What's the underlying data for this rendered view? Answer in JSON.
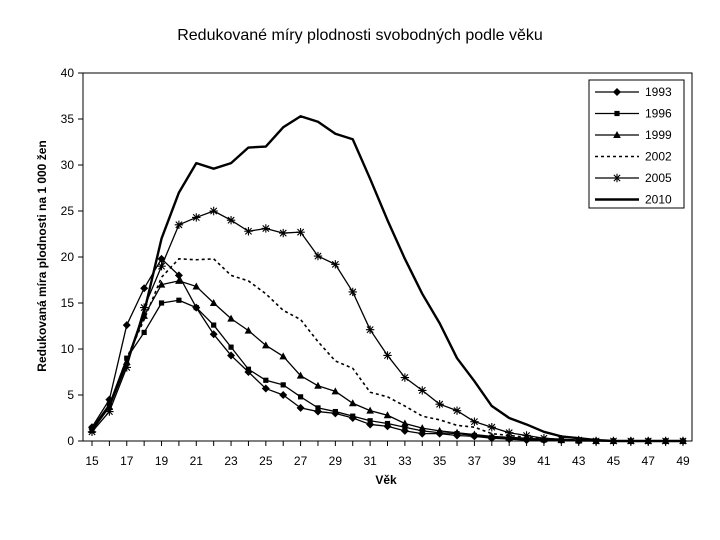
{
  "chart_data": {
    "type": "line",
    "title": "Redukované míry plodnosti svobodných podle věku",
    "xlabel": "Věk",
    "ylabel": "Redukovaná míra plodnosti na 1 000 žen",
    "xlim": [
      15,
      49
    ],
    "ylim": [
      0,
      40
    ],
    "x_ticks": [
      15,
      17,
      19,
      21,
      23,
      25,
      27,
      29,
      31,
      33,
      35,
      37,
      39,
      41,
      43,
      45,
      47,
      49
    ],
    "y_ticks": [
      0,
      5,
      10,
      15,
      20,
      25,
      30,
      35,
      40
    ],
    "grid": false,
    "legend_position": "top-right",
    "x": [
      15,
      16,
      17,
      18,
      19,
      20,
      21,
      22,
      23,
      24,
      25,
      26,
      27,
      28,
      29,
      30,
      31,
      32,
      33,
      34,
      35,
      36,
      37,
      38,
      39,
      40,
      41,
      42,
      43,
      44,
      45,
      46,
      47,
      48,
      49
    ],
    "series": [
      {
        "name": "1993",
        "marker": "diamond",
        "dash": "solid",
        "width": 1.3,
        "values": [
          1.5,
          4.5,
          12.6,
          16.6,
          19.8,
          18.0,
          14.5,
          11.6,
          9.3,
          7.5,
          5.7,
          5.0,
          3.6,
          3.2,
          3.0,
          2.5,
          1.8,
          1.6,
          1.1,
          0.8,
          0.8,
          0.6,
          0.5,
          0.3,
          0.2,
          0.1,
          0.1,
          0.1,
          0.0,
          0.0,
          0.0,
          0.0,
          0.0,
          0.0,
          0.0
        ]
      },
      {
        "name": "1996",
        "marker": "square",
        "dash": "solid",
        "width": 1.3,
        "values": [
          1.4,
          4.0,
          9.0,
          11.8,
          15.0,
          15.3,
          14.5,
          12.6,
          10.2,
          7.8,
          6.6,
          6.1,
          4.8,
          3.6,
          3.2,
          2.7,
          2.2,
          1.9,
          1.5,
          1.1,
          0.9,
          0.8,
          0.6,
          0.4,
          0.3,
          0.2,
          0.1,
          0.1,
          0.0,
          0.0,
          0.0,
          0.0,
          0.0,
          0.0,
          0.0
        ]
      },
      {
        "name": "1999",
        "marker": "triangle",
        "dash": "solid",
        "width": 1.3,
        "values": [
          1.2,
          3.7,
          8.6,
          13.6,
          17.0,
          17.4,
          16.8,
          15.0,
          13.3,
          12.0,
          10.4,
          9.2,
          7.1,
          6.0,
          5.4,
          4.1,
          3.3,
          2.8,
          1.9,
          1.4,
          1.1,
          0.9,
          0.7,
          0.5,
          0.4,
          0.3,
          0.2,
          0.1,
          0.1,
          0.0,
          0.0,
          0.0,
          0.0,
          0.0,
          0.0
        ]
      },
      {
        "name": "2002",
        "marker": "none",
        "dash": "dotted",
        "width": 1.6,
        "values": [
          1.3,
          3.8,
          9.0,
          13.2,
          17.8,
          19.8,
          19.7,
          19.8,
          18.0,
          17.4,
          16.0,
          14.2,
          13.2,
          10.8,
          8.7,
          7.9,
          5.3,
          4.8,
          3.8,
          2.7,
          2.3,
          1.7,
          1.5,
          0.8,
          0.6,
          0.4,
          0.3,
          0.1,
          0.1,
          0.0,
          0.0,
          0.0,
          0.0,
          0.0,
          0.0
        ]
      },
      {
        "name": "2005",
        "marker": "star",
        "dash": "solid",
        "width": 1.3,
        "values": [
          1.0,
          3.2,
          8.0,
          14.5,
          19.0,
          23.5,
          24.3,
          25.0,
          24.0,
          22.8,
          23.1,
          22.6,
          22.7,
          20.1,
          19.2,
          16.2,
          12.1,
          9.3,
          6.9,
          5.5,
          4.0,
          3.3,
          2.1,
          1.5,
          0.9,
          0.6,
          0.3,
          0.2,
          0.1,
          0.0,
          0.0,
          0.0,
          0.0,
          0.0,
          0.0
        ]
      },
      {
        "name": "2010",
        "marker": "none",
        "dash": "solid",
        "width": 2.4,
        "values": [
          1.2,
          3.8,
          8.5,
          14.0,
          22.0,
          27.0,
          30.2,
          29.6,
          30.2,
          31.9,
          32.0,
          34.1,
          35.3,
          34.7,
          33.4,
          32.8,
          28.5,
          24.0,
          19.8,
          16.0,
          12.8,
          9.0,
          6.5,
          3.8,
          2.5,
          1.8,
          1.0,
          0.5,
          0.3,
          0.1,
          0.0,
          0.0,
          0.0,
          0.0,
          0.0
        ]
      }
    ]
  }
}
